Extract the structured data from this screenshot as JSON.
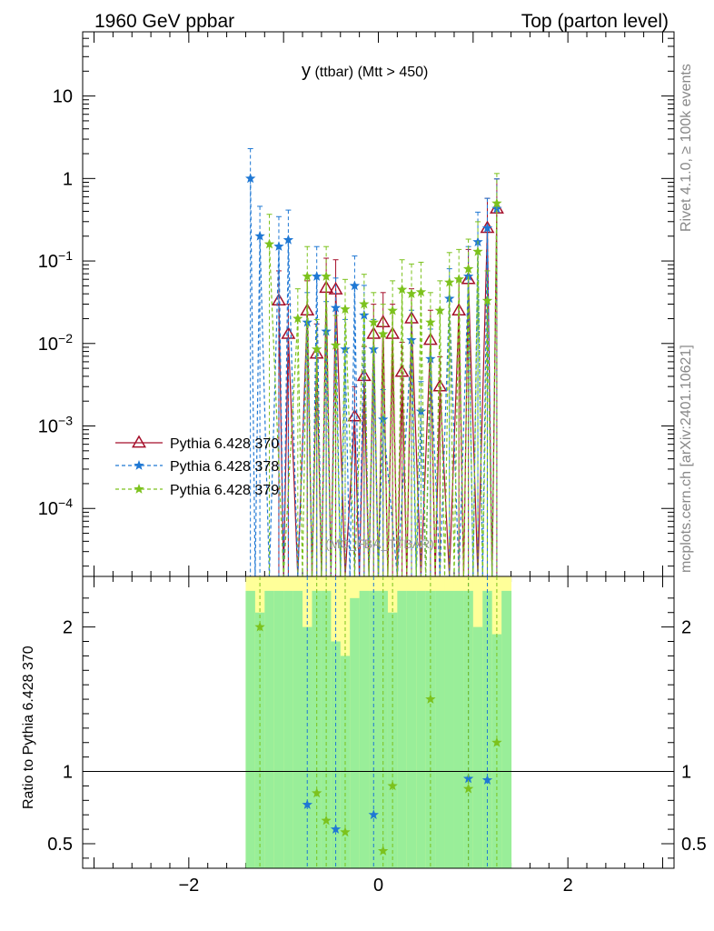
{
  "header": {
    "left": "1960 GeV ppbar",
    "right": "Top (parton level)"
  },
  "side_labels": {
    "rivet": "Rivet 4.1.0, ≥ 100k events",
    "mcplots": "mcplots.cern.ch [arXiv:2401.10621]"
  },
  "watermark": "(MC_FBA_TTBAR)",
  "colors": {
    "p370": "#a50f2a",
    "p378": "#1f78d4",
    "p379": "#7cc21d",
    "band_yellow": "#ffff99",
    "band_green": "#99ee99"
  },
  "chart_data": {
    "type": "line",
    "title_main": "y",
    "title_rest": " (ttbar) (Mtt > 450)",
    "xlim": [
      -3.12,
      3.12
    ],
    "ylim_log": [
      1.5e-05,
      60
    ],
    "x_ticks": [
      -2,
      0,
      2
    ],
    "x_tick_labels": [
      "−2",
      "0",
      "2"
    ],
    "y_ticks": [
      {
        "value": 10,
        "label": "10"
      },
      {
        "value": 1,
        "label": "1"
      },
      {
        "value": 0.1,
        "base": "10",
        "exp": "−1"
      },
      {
        "value": 0.01,
        "base": "10",
        "exp": "−2"
      },
      {
        "value": 0.001,
        "base": "10",
        "exp": "−3"
      },
      {
        "value": 0.0001,
        "base": "10",
        "exp": "−4"
      }
    ],
    "legend": [
      "Pythia 6.428 370",
      "Pythia 6.428 378",
      "Pythia 6.428 379"
    ],
    "bin_edges_range": [
      -1.4,
      1.4
    ],
    "n_bins": 28,
    "series": [
      {
        "name": "Pythia 6.428 370",
        "marker": "triangle",
        "x": [
          -1.05,
          -0.95,
          -0.75,
          -0.65,
          -0.55,
          -0.45,
          -0.25,
          -0.15,
          -0.05,
          0.05,
          0.15,
          0.25,
          0.35,
          0.55,
          0.65,
          0.85,
          0.95,
          1.15,
          1.25
        ],
        "y": [
          0.033,
          0.013,
          0.025,
          0.0075,
          0.047,
          0.045,
          0.0013,
          0.004,
          0.013,
          0.018,
          0.013,
          0.0045,
          0.02,
          0.011,
          0.003,
          0.025,
          0.06,
          0.25,
          0.43
        ]
      },
      {
        "name": "Pythia 6.428 378",
        "marker": "star",
        "x": [
          -1.35,
          -1.25,
          -1.05,
          -0.95,
          -0.75,
          -0.65,
          -0.55,
          -0.45,
          -0.35,
          -0.25,
          -0.15,
          -0.05,
          0.05,
          0.35,
          0.45,
          0.55,
          0.75,
          0.95,
          1.05,
          1.15,
          1.25
        ],
        "y": [
          1.0,
          0.2,
          0.15,
          0.18,
          0.018,
          0.065,
          0.014,
          0.027,
          0.0085,
          0.05,
          0.022,
          0.0085,
          0.0012,
          0.011,
          0.0015,
          0.0065,
          0.035,
          0.065,
          0.17,
          0.25,
          0.43
        ]
      },
      {
        "name": "Pythia 6.428 379",
        "marker": "star",
        "x": [
          -1.15,
          -0.85,
          -0.75,
          -0.65,
          -0.55,
          -0.45,
          -0.35,
          -0.15,
          -0.05,
          0.05,
          0.15,
          0.25,
          0.35,
          0.45,
          0.55,
          0.65,
          0.75,
          0.85,
          0.95,
          1.05,
          1.15,
          1.25
        ],
        "y": [
          0.16,
          0.02,
          0.065,
          0.0085,
          0.065,
          0.0095,
          0.026,
          0.03,
          0.018,
          0.013,
          0.025,
          0.045,
          0.04,
          0.042,
          0.018,
          0.025,
          0.055,
          0.06,
          0.08,
          0.13,
          0.033,
          0.5
        ]
      }
    ],
    "ratio": {
      "ylabel": "Ratio to Pythia 6.428 370",
      "ylim": [
        0.33,
        2.35
      ],
      "y_ticks": [
        0.5,
        1,
        2
      ],
      "y_tick_labels": [
        "0.5",
        "1",
        "2"
      ],
      "reference": 1,
      "series_378": {
        "x": [
          -0.75,
          -0.45,
          -0.05,
          0.95,
          1.15
        ],
        "y": [
          0.77,
          0.6,
          0.7,
          0.95,
          0.94
        ]
      },
      "series_379": {
        "x": [
          -1.25,
          -0.65,
          -0.55,
          -0.35,
          0.05,
          0.15,
          0.55,
          0.95,
          1.25
        ],
        "y": [
          2.0,
          0.85,
          0.66,
          0.58,
          0.45,
          0.9,
          1.5,
          0.88,
          1.2
        ]
      }
    }
  }
}
